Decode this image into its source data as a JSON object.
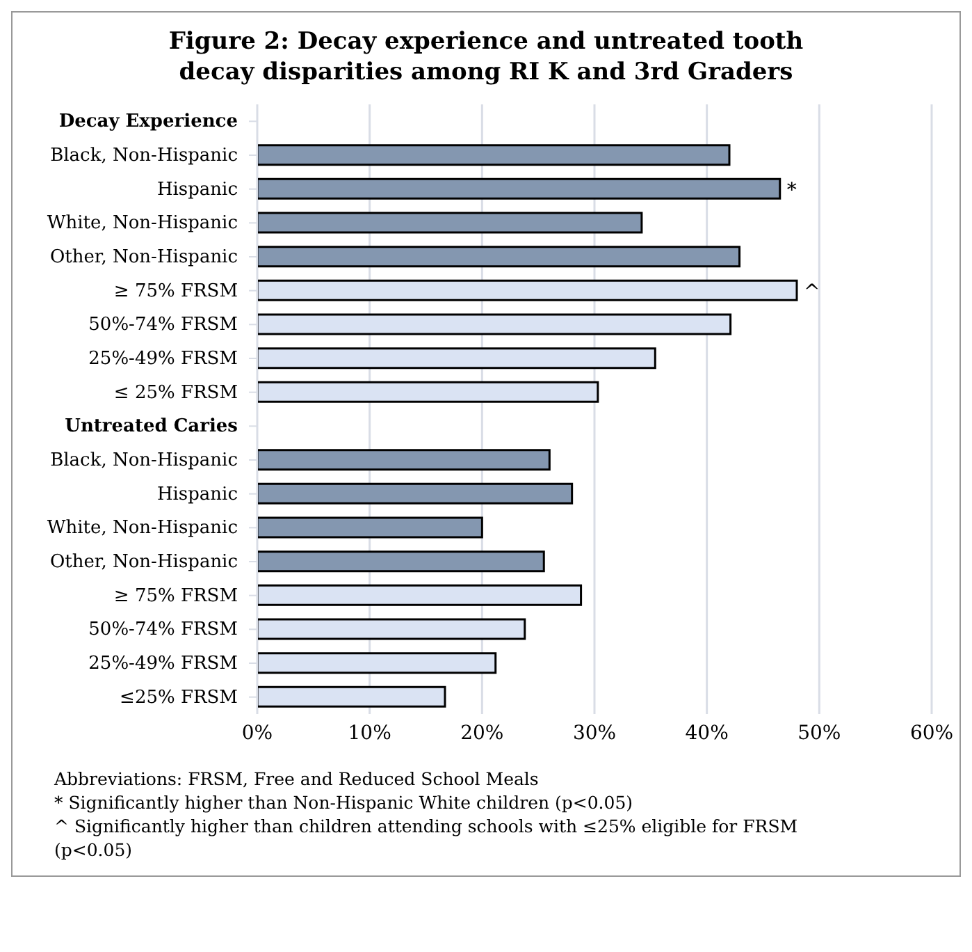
{
  "chart_data": {
    "type": "bar",
    "orientation": "horizontal",
    "title": "Figure 2: Decay experience and untreated tooth decay disparities among RI K and 3rd Graders",
    "categories": [
      "Decay Experience",
      "Black, Non-Hispanic",
      "Hispanic",
      "White, Non-Hispanic",
      "Other, Non-Hispanic",
      "≥ 75% FRSM",
      "50%-74% FRSM",
      "25%-49% FRSM",
      "≤ 25% FRSM",
      "Untreated Caries",
      "Black, Non-Hispanic",
      "Hispanic",
      "White, Non-Hispanic",
      "Other, Non-Hispanic",
      "≥ 75% FRSM",
      "50%-74% FRSM",
      "25%-49% FRSM",
      "≤25% FRSM"
    ],
    "values": [
      null,
      42.0,
      46.5,
      34.2,
      42.9,
      48.0,
      42.1,
      35.4,
      30.3,
      null,
      26.0,
      28.0,
      20.0,
      25.5,
      28.8,
      23.8,
      21.2,
      16.7
    ],
    "colors": [
      "#8497b0",
      "#8497b0",
      "#8497b0",
      "#8497b0",
      "#8497b0",
      "#dae3f3",
      "#dae3f3",
      "#dae3f3",
      "#dae3f3",
      "#8497b0",
      "#8497b0",
      "#8497b0",
      "#8497b0",
      "#8497b0",
      "#dae3f3",
      "#dae3f3",
      "#dae3f3",
      "#dae3f3"
    ],
    "xlim": [
      0,
      60
    ],
    "xticks": [
      {
        "value": 0,
        "label": "0%"
      },
      {
        "value": 10,
        "label": "10%"
      },
      {
        "value": 20,
        "label": "20%"
      },
      {
        "value": 30,
        "label": "30%"
      },
      {
        "value": 40,
        "label": "40%"
      },
      {
        "value": 50,
        "label": "50%"
      },
      {
        "value": 60,
        "label": "60%"
      }
    ],
    "grid": "x",
    "annotations": [
      {
        "text": "*",
        "x": 46.5,
        "y": "Hispanic"
      },
      {
        "text": "^",
        "x": 48.0,
        "y": "≥ 75% FRSM"
      },
      "Abbreviations: FRSM, Free and Reduced School Meals",
      "* Significantly higher than Non-Hispanic White children (p<0.05)",
      "^ Significantly higher than children attending schools with ≤25% eligible for FRSM (p<0.05)"
    ]
  }
}
